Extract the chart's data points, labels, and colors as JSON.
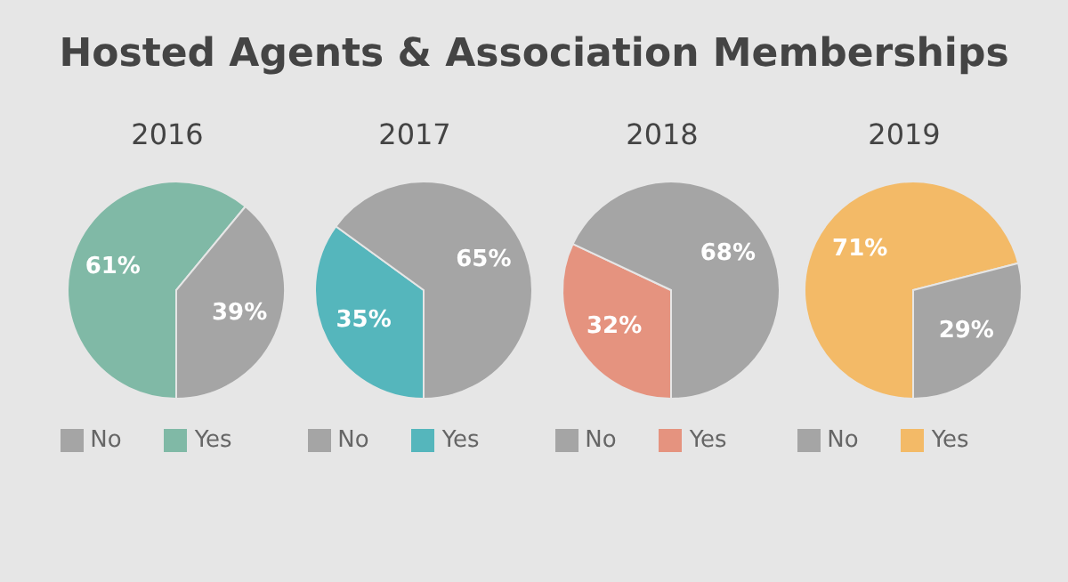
{
  "chart_data": [
    {
      "type": "pie",
      "title": "Hosted Agents & Association Memberships",
      "subtitle": "2016",
      "categories": [
        "Yes",
        "No"
      ],
      "values": [
        61,
        39
      ],
      "colors": [
        "#80b9a6",
        "#a5a5a5"
      ],
      "value_labels": [
        "61%",
        "39%"
      ],
      "legend": "bottom"
    },
    {
      "type": "pie",
      "subtitle": "2017",
      "categories": [
        "Yes",
        "No"
      ],
      "values": [
        35,
        65
      ],
      "colors": [
        "#55b6bc",
        "#a5a5a5"
      ],
      "value_labels": [
        "35%",
        "65%"
      ],
      "legend": "bottom"
    },
    {
      "type": "pie",
      "subtitle": "2018",
      "categories": [
        "Yes",
        "No"
      ],
      "values": [
        32,
        68
      ],
      "colors": [
        "#e5937f",
        "#a5a5a5"
      ],
      "value_labels": [
        "32%",
        "68%"
      ],
      "legend": "bottom"
    },
    {
      "type": "pie",
      "subtitle": "2019",
      "categories": [
        "Yes",
        "No"
      ],
      "values": [
        71,
        29
      ],
      "colors": [
        "#f3ba67",
        "#a5a5a5"
      ],
      "value_labels": [
        "71%",
        "29%"
      ],
      "legend": "bottom"
    }
  ]
}
